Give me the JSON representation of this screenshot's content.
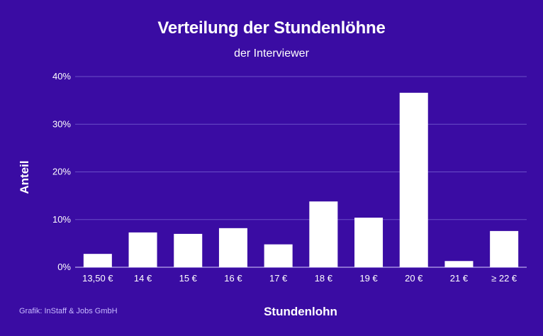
{
  "chart_data": {
    "type": "bar",
    "title": "Verteilung der Stundenlöhne",
    "subtitle": "der Interviewer",
    "xlabel": "Stundenlohn",
    "ylabel": "Anteil",
    "categories": [
      "13,50 €",
      "14 €",
      "15 €",
      "16 €",
      "17 €",
      "18 €",
      "19 €",
      "20 €",
      "21 €",
      "≥ 22 €"
    ],
    "values": [
      2.8,
      7.3,
      7.0,
      8.2,
      4.8,
      13.8,
      10.4,
      36.6,
      1.3,
      7.6
    ],
    "unit": "%",
    "ylim": [
      0,
      40
    ],
    "yticks": [
      0,
      10,
      20,
      30,
      40
    ],
    "ytick_labels": [
      "0%",
      "10%",
      "20%",
      "30%",
      "40%"
    ],
    "grid": true,
    "legend": "none",
    "colors": {
      "background": "#3a0ca3",
      "bar": "#ffffff",
      "grid": "#6a4fc7",
      "text": "#ffffff",
      "credit": "#c7b9ff"
    }
  },
  "credit": "Grafik: InStaff & Jobs GmbH"
}
